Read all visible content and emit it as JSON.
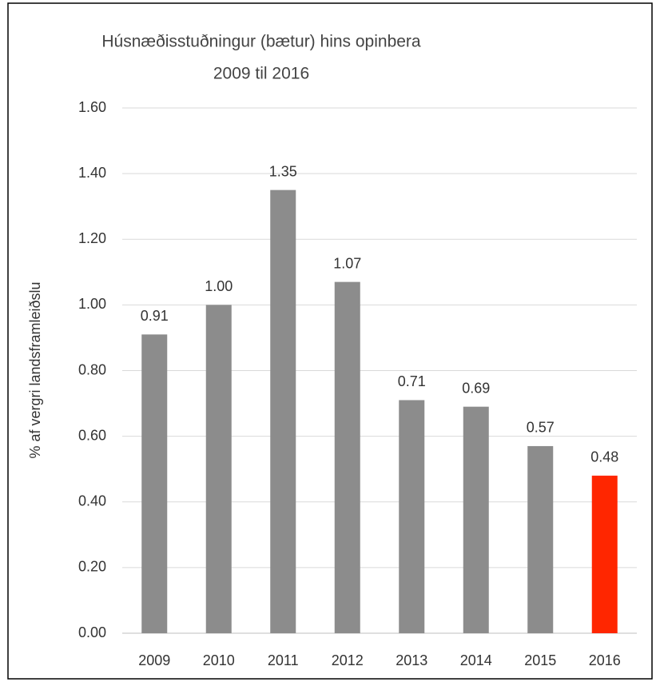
{
  "chart_data": {
    "type": "bar",
    "title": "Húsnæðisstuðningur (bætur) hins opinbera",
    "subtitle": "2009 til 2016",
    "y_label": "% af vergri landsframleiðslu",
    "categories": [
      "2009",
      "2010",
      "2011",
      "2012",
      "2013",
      "2014",
      "2015",
      "2016"
    ],
    "values": [
      0.91,
      1.0,
      1.35,
      1.07,
      0.71,
      0.69,
      0.57,
      0.48
    ],
    "value_labels": [
      "0.91",
      "1.00",
      "1.35",
      "1.07",
      "0.71",
      "0.69",
      "0.57",
      "0.48"
    ],
    "colors": [
      "#8c8c8c",
      "#8c8c8c",
      "#8c8c8c",
      "#8c8c8c",
      "#8c8c8c",
      "#8c8c8c",
      "#8c8c8c",
      "#ff2600"
    ],
    "ylim": [
      0,
      1.6
    ],
    "yticks": [
      {
        "value": 0,
        "label": "0.00"
      },
      {
        "value": 0.2,
        "label": "0.20"
      },
      {
        "value": 0.4,
        "label": "0.40"
      },
      {
        "value": 0.6,
        "label": "0.60"
      },
      {
        "value": 0.8,
        "label": "0.80"
      },
      {
        "value": 1.0,
        "label": "1.00"
      },
      {
        "value": 1.2,
        "label": "1.20"
      },
      {
        "value": 1.4,
        "label": "1.40"
      },
      {
        "value": 1.6,
        "label": "1.60"
      }
    ],
    "grid": true
  }
}
